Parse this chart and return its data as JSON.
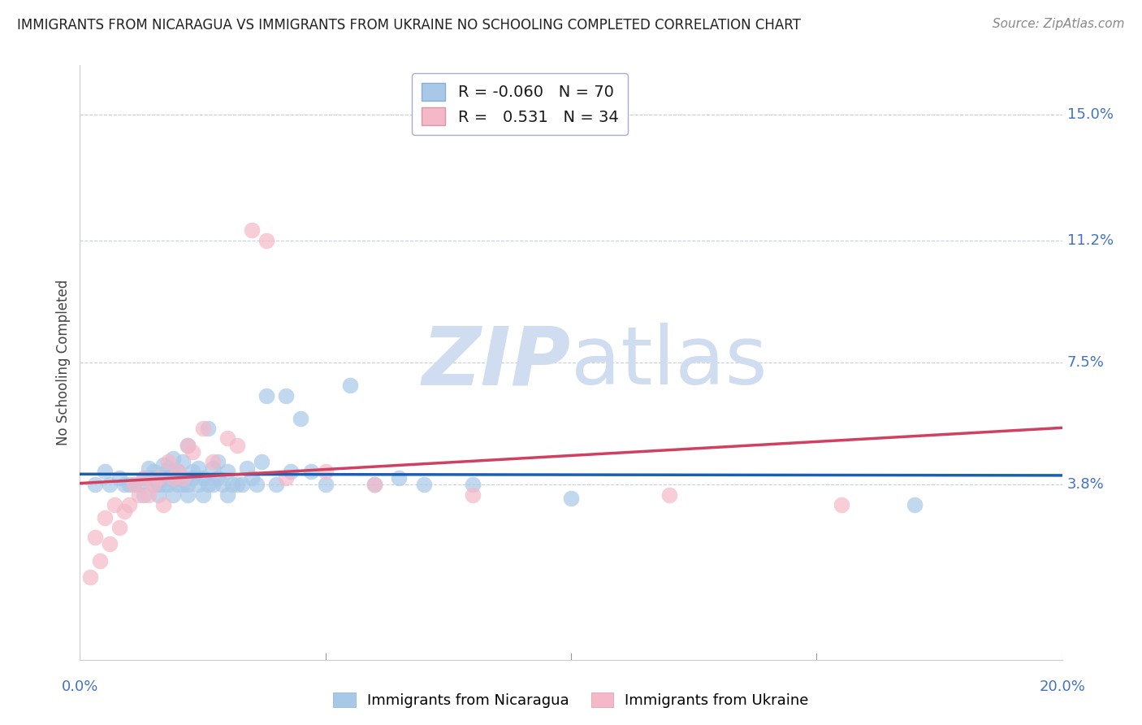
{
  "title": "IMMIGRANTS FROM NICARAGUA VS IMMIGRANTS FROM UKRAINE NO SCHOOLING COMPLETED CORRELATION CHART",
  "source": "Source: ZipAtlas.com",
  "ylabel": "No Schooling Completed",
  "xlim": [
    0.0,
    0.2
  ],
  "ylim": [
    -0.015,
    0.165
  ],
  "yticks": [
    0.0,
    0.038,
    0.075,
    0.112,
    0.15
  ],
  "ytick_labels": [
    "",
    "3.8%",
    "7.5%",
    "11.2%",
    "15.0%"
  ],
  "xtick_vals": [
    0.0,
    0.05,
    0.1,
    0.15,
    0.2
  ],
  "legend1_R": "-0.060",
  "legend1_N": "70",
  "legend2_R": "0.531",
  "legend2_N": "34",
  "color_nicaragua": "#a8c8e8",
  "color_ukraine": "#f4b8c8",
  "line_color_nicaragua": "#1a5fb4",
  "line_color_ukraine": "#d04060",
  "watermark_color": "#d0ddf0",
  "nicaragua_x": [
    0.003,
    0.005,
    0.006,
    0.008,
    0.009,
    0.01,
    0.011,
    0.012,
    0.013,
    0.013,
    0.014,
    0.014,
    0.015,
    0.015,
    0.015,
    0.016,
    0.016,
    0.017,
    0.017,
    0.017,
    0.018,
    0.018,
    0.018,
    0.019,
    0.019,
    0.019,
    0.02,
    0.02,
    0.02,
    0.021,
    0.021,
    0.022,
    0.022,
    0.022,
    0.023,
    0.023,
    0.024,
    0.024,
    0.025,
    0.025,
    0.026,
    0.026,
    0.027,
    0.027,
    0.028,
    0.028,
    0.029,
    0.03,
    0.03,
    0.031,
    0.032,
    0.033,
    0.034,
    0.035,
    0.036,
    0.037,
    0.038,
    0.04,
    0.042,
    0.043,
    0.045,
    0.047,
    0.05,
    0.055,
    0.06,
    0.065,
    0.07,
    0.08,
    0.1,
    0.17
  ],
  "nicaragua_y": [
    0.038,
    0.042,
    0.038,
    0.04,
    0.038,
    0.038,
    0.038,
    0.038,
    0.04,
    0.035,
    0.04,
    0.043,
    0.04,
    0.038,
    0.042,
    0.035,
    0.038,
    0.038,
    0.04,
    0.044,
    0.04,
    0.038,
    0.043,
    0.035,
    0.042,
    0.046,
    0.038,
    0.04,
    0.042,
    0.038,
    0.045,
    0.035,
    0.038,
    0.05,
    0.04,
    0.042,
    0.038,
    0.043,
    0.035,
    0.04,
    0.038,
    0.055,
    0.038,
    0.043,
    0.04,
    0.045,
    0.038,
    0.042,
    0.035,
    0.038,
    0.038,
    0.038,
    0.043,
    0.04,
    0.038,
    0.045,
    0.065,
    0.038,
    0.065,
    0.042,
    0.058,
    0.042,
    0.038,
    0.068,
    0.038,
    0.04,
    0.038,
    0.038,
    0.034,
    0.032
  ],
  "ukraine_x": [
    0.002,
    0.003,
    0.004,
    0.005,
    0.006,
    0.007,
    0.008,
    0.009,
    0.01,
    0.011,
    0.012,
    0.013,
    0.014,
    0.015,
    0.016,
    0.017,
    0.018,
    0.019,
    0.02,
    0.021,
    0.022,
    0.023,
    0.025,
    0.027,
    0.03,
    0.032,
    0.035,
    0.038,
    0.042,
    0.05,
    0.06,
    0.08,
    0.12,
    0.155
  ],
  "ukraine_y": [
    0.01,
    0.022,
    0.015,
    0.028,
    0.02,
    0.032,
    0.025,
    0.03,
    0.032,
    0.038,
    0.035,
    0.04,
    0.035,
    0.038,
    0.04,
    0.032,
    0.045,
    0.04,
    0.042,
    0.04,
    0.05,
    0.048,
    0.055,
    0.045,
    0.052,
    0.05,
    0.115,
    0.112,
    0.04,
    0.042,
    0.038,
    0.035,
    0.035,
    0.032
  ]
}
